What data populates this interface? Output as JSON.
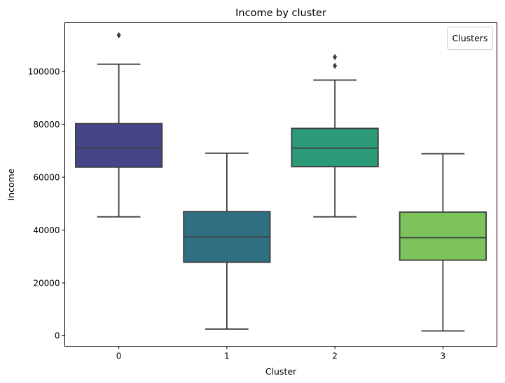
{
  "chart_data": {
    "type": "box",
    "title": "Income by cluster",
    "xlabel": "Cluster",
    "ylabel": "Income",
    "categories": [
      "0",
      "1",
      "2",
      "3"
    ],
    "ylim": [
      -4000,
      118500
    ],
    "yticks": [
      0,
      20000,
      40000,
      60000,
      80000,
      100000
    ],
    "ytick_labels": [
      "0",
      "20000",
      "40000",
      "60000",
      "80000",
      "100000"
    ],
    "grid": false,
    "legend": {
      "title": "Clusters",
      "placement": "top-right",
      "entries": []
    },
    "boxes": [
      {
        "category": "0",
        "whisker_low": 45000,
        "q1": 63800,
        "median": 71000,
        "q3": 80300,
        "whisker_high": 102800,
        "outliers": [
          113800
        ],
        "color": "#47458a"
      },
      {
        "category": "1",
        "whisker_low": 2500,
        "q1": 27800,
        "median": 37400,
        "q3": 47000,
        "whisker_high": 69100,
        "outliers": [],
        "color": "#2e6f81"
      },
      {
        "category": "2",
        "whisker_low": 45000,
        "q1": 64000,
        "median": 71000,
        "q3": 78500,
        "whisker_high": 96800,
        "outliers": [
          102200,
          105500
        ],
        "color": "#2a9a79"
      },
      {
        "category": "3",
        "whisker_low": 1800,
        "q1": 28600,
        "median": 37100,
        "q3": 46800,
        "whisker_high": 68900,
        "outliers": [],
        "color": "#7cc35c"
      }
    ]
  }
}
